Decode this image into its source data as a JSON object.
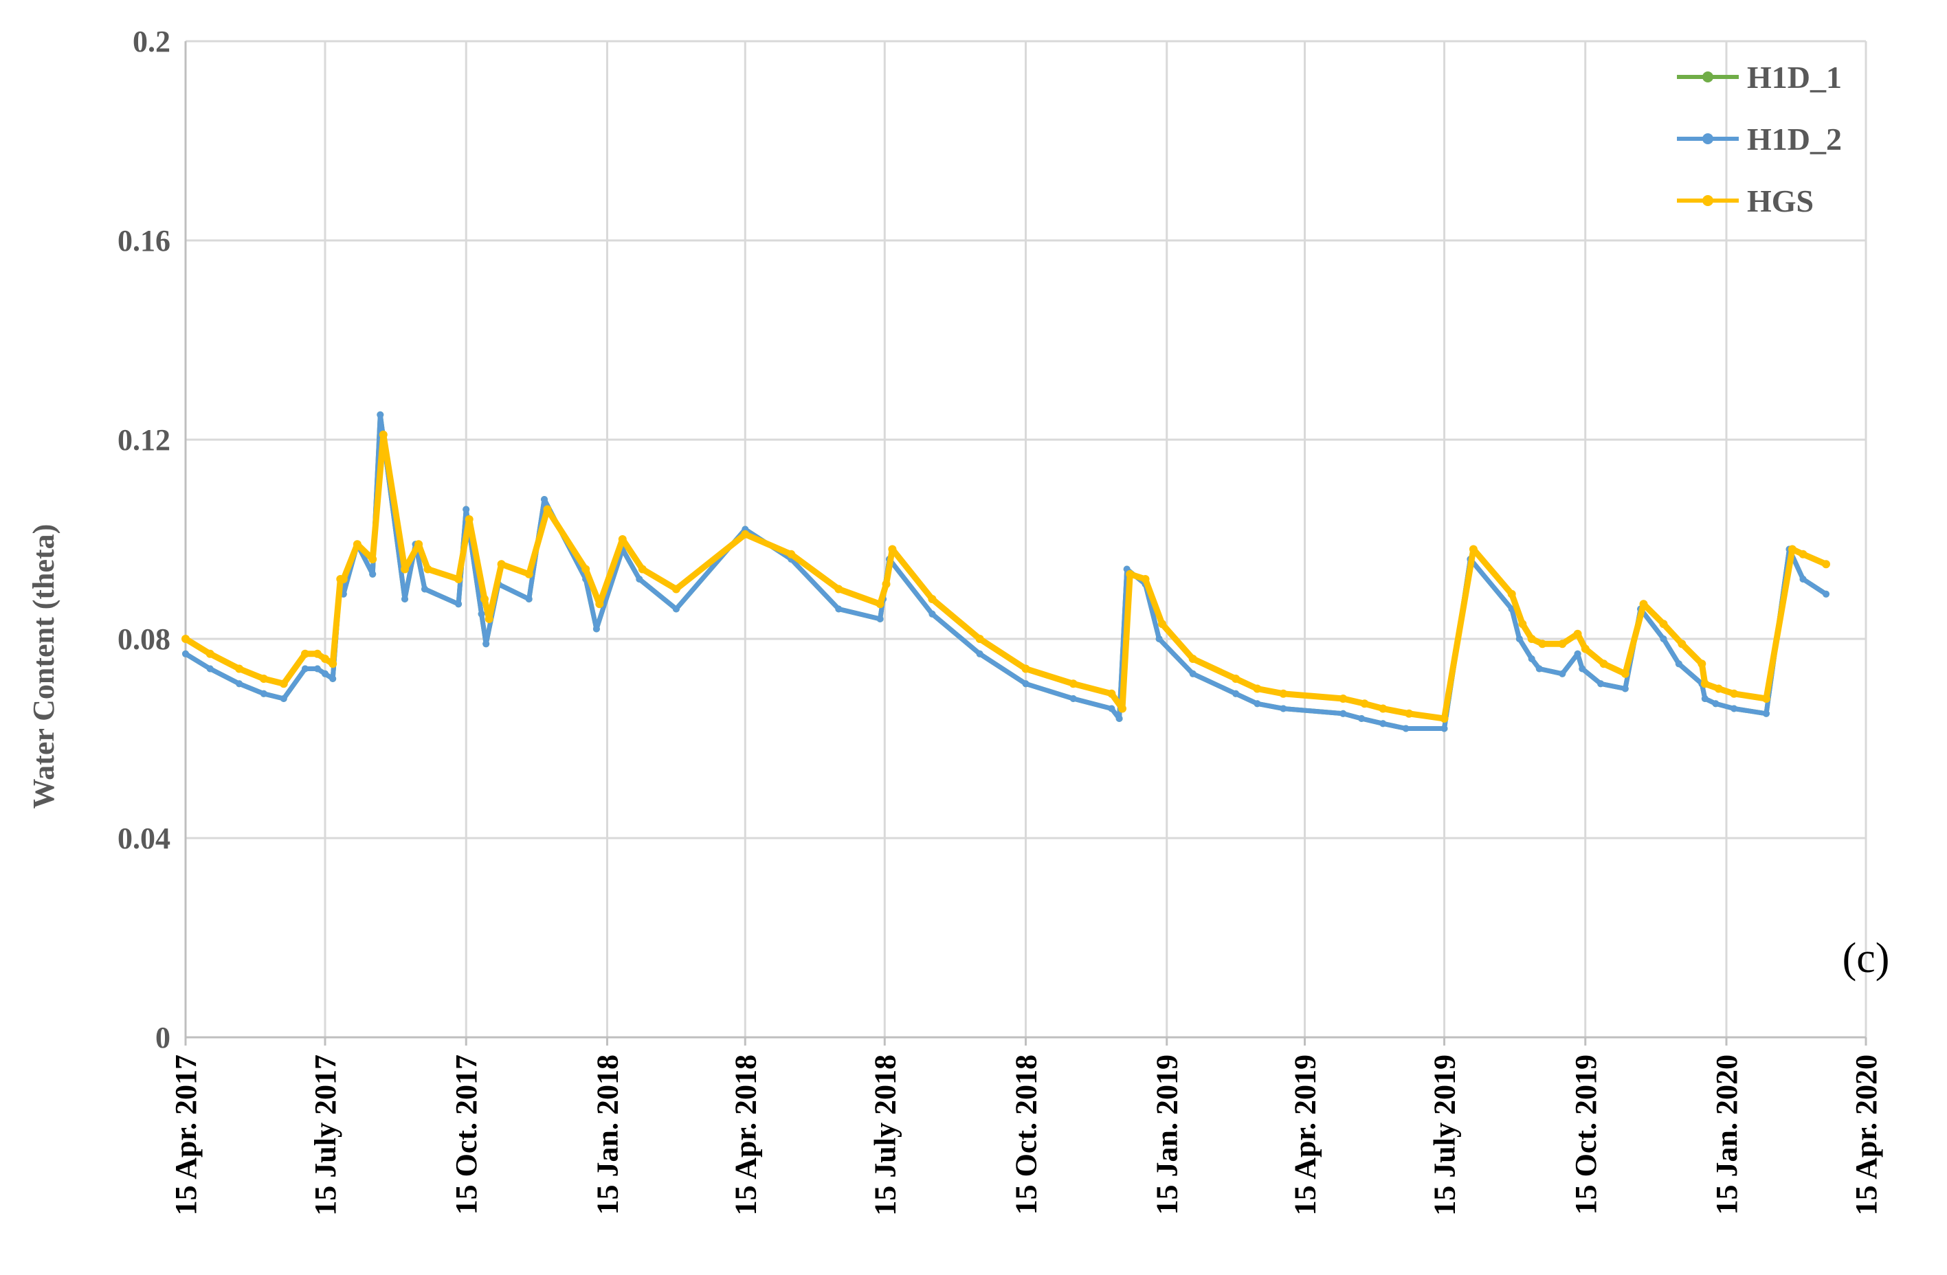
{
  "chart_data": {
    "type": "line",
    "title": "",
    "xlabel": "",
    "ylabel": "Water Content (theta)",
    "ylim": [
      0,
      0.2
    ],
    "yticks": [
      "0",
      "0.04",
      "0.08",
      "0.12",
      "0.16",
      "0.2"
    ],
    "ytick_values": [
      0,
      0.04,
      0.08,
      0.12,
      0.16,
      0.2
    ],
    "xlim": [
      "2017-04-15",
      "2020-04-15"
    ],
    "xticks": [
      "15 Apr. 2017",
      "15 July 2017",
      "15 Oct. 2017",
      "15 Jan. 2018",
      "15 Apr. 2018",
      "15 July 2018",
      "15 Oct. 2018",
      "15 Jan. 2019",
      "15 Apr. 2019",
      "15 July 2019",
      "15 Oct. 2019",
      "15 Jan. 2020",
      "15 Apr. 2020"
    ],
    "xtick_dates": [
      "2017-04-15",
      "2017-07-15",
      "2017-10-15",
      "2018-01-15",
      "2018-04-15",
      "2018-07-15",
      "2018-10-15",
      "2019-01-15",
      "2019-04-15",
      "2019-07-15",
      "2019-10-15",
      "2020-01-15",
      "2020-04-15"
    ],
    "grid": true,
    "legend_position": "top-right",
    "annotation": "(c)",
    "series": [
      {
        "name": "H1D_1",
        "color": "#70ad47",
        "x": [
          "2017-04-15",
          "2017-05-01",
          "2017-05-20",
          "2017-06-05",
          "2017-06-18",
          "2017-07-02",
          "2017-07-10",
          "2017-07-15",
          "2017-07-20",
          "2017-07-25",
          "2017-07-27",
          "2017-08-05",
          "2017-08-15",
          "2017-08-20",
          "2017-09-05",
          "2017-09-12",
          "2017-09-18",
          "2017-10-10",
          "2017-10-15",
          "2017-10-25",
          "2017-10-28",
          "2017-11-05",
          "2017-11-25",
          "2017-12-05",
          "2018-01-01",
          "2018-01-08",
          "2018-01-25",
          "2018-02-05",
          "2018-03-01",
          "2018-04-15",
          "2018-05-15",
          "2018-06-15",
          "2018-07-12",
          "2018-07-14",
          "2018-07-18",
          "2018-08-15",
          "2018-09-15",
          "2018-10-15",
          "2018-11-15",
          "2018-12-10",
          "2018-12-15",
          "2018-12-20",
          "2019-01-01",
          "2019-01-10",
          "2019-02-01",
          "2019-03-01",
          "2019-03-15",
          "2019-04-01",
          "2019-05-10",
          "2019-05-22",
          "2019-06-05",
          "2019-06-20",
          "2019-07-15",
          "2019-08-01",
          "2019-08-28",
          "2019-09-02",
          "2019-09-10",
          "2019-09-15",
          "2019-09-30",
          "2019-10-10",
          "2019-10-13",
          "2019-10-25",
          "2019-11-10",
          "2019-11-20",
          "2019-12-05",
          "2019-12-15",
          "2019-12-30",
          "2020-01-01",
          "2020-01-08",
          "2020-01-20",
          "2020-02-10",
          "2020-02-25",
          "2020-03-05",
          "2020-03-20"
        ],
        "y": [
          0.077,
          0.074,
          0.071,
          0.069,
          0.068,
          0.074,
          0.074,
          0.073,
          0.072,
          0.092,
          0.089,
          0.099,
          0.093,
          0.125,
          0.088,
          0.099,
          0.09,
          0.087,
          0.106,
          0.085,
          0.079,
          0.091,
          0.088,
          0.108,
          0.092,
          0.082,
          0.098,
          0.092,
          0.086,
          0.102,
          0.096,
          0.086,
          0.084,
          0.088,
          0.096,
          0.085,
          0.077,
          0.071,
          0.068,
          0.066,
          0.064,
          0.094,
          0.091,
          0.08,
          0.073,
          0.069,
          0.067,
          0.066,
          0.065,
          0.064,
          0.063,
          0.062,
          0.062,
          0.096,
          0.086,
          0.08,
          0.076,
          0.074,
          0.073,
          0.077,
          0.074,
          0.071,
          0.07,
          0.086,
          0.08,
          0.075,
          0.071,
          0.068,
          0.067,
          0.066,
          0.065,
          0.098,
          0.092,
          0.089
        ]
      },
      {
        "name": "H1D_2",
        "color": "#5b9bd5",
        "x": [
          "2017-04-15",
          "2017-05-01",
          "2017-05-20",
          "2017-06-05",
          "2017-06-18",
          "2017-07-02",
          "2017-07-10",
          "2017-07-15",
          "2017-07-20",
          "2017-07-25",
          "2017-07-27",
          "2017-08-05",
          "2017-08-15",
          "2017-08-20",
          "2017-09-05",
          "2017-09-12",
          "2017-09-18",
          "2017-10-10",
          "2017-10-15",
          "2017-10-25",
          "2017-10-28",
          "2017-11-05",
          "2017-11-25",
          "2017-12-05",
          "2018-01-01",
          "2018-01-08",
          "2018-01-25",
          "2018-02-05",
          "2018-03-01",
          "2018-04-15",
          "2018-05-15",
          "2018-06-15",
          "2018-07-12",
          "2018-07-14",
          "2018-07-18",
          "2018-08-15",
          "2018-09-15",
          "2018-10-15",
          "2018-11-15",
          "2018-12-10",
          "2018-12-15",
          "2018-12-20",
          "2019-01-01",
          "2019-01-10",
          "2019-02-01",
          "2019-03-01",
          "2019-03-15",
          "2019-04-01",
          "2019-05-10",
          "2019-05-22",
          "2019-06-05",
          "2019-06-20",
          "2019-07-15",
          "2019-08-01",
          "2019-08-28",
          "2019-09-02",
          "2019-09-10",
          "2019-09-15",
          "2019-09-30",
          "2019-10-10",
          "2019-10-13",
          "2019-10-25",
          "2019-11-10",
          "2019-11-20",
          "2019-12-05",
          "2019-12-15",
          "2019-12-30",
          "2020-01-01",
          "2020-01-08",
          "2020-01-20",
          "2020-02-10",
          "2020-02-25",
          "2020-03-05",
          "2020-03-20"
        ],
        "y": [
          0.077,
          0.074,
          0.071,
          0.069,
          0.068,
          0.074,
          0.074,
          0.073,
          0.072,
          0.092,
          0.089,
          0.099,
          0.093,
          0.125,
          0.088,
          0.099,
          0.09,
          0.087,
          0.106,
          0.085,
          0.079,
          0.091,
          0.088,
          0.108,
          0.092,
          0.082,
          0.098,
          0.092,
          0.086,
          0.102,
          0.096,
          0.086,
          0.084,
          0.088,
          0.096,
          0.085,
          0.077,
          0.071,
          0.068,
          0.066,
          0.064,
          0.094,
          0.091,
          0.08,
          0.073,
          0.069,
          0.067,
          0.066,
          0.065,
          0.064,
          0.063,
          0.062,
          0.062,
          0.096,
          0.086,
          0.08,
          0.076,
          0.074,
          0.073,
          0.077,
          0.074,
          0.071,
          0.07,
          0.086,
          0.08,
          0.075,
          0.071,
          0.068,
          0.067,
          0.066,
          0.065,
          0.098,
          0.092,
          0.089
        ]
      },
      {
        "name": "HGS",
        "color": "#ffc000",
        "x": [
          "2017-04-15",
          "2017-05-01",
          "2017-05-20",
          "2017-06-05",
          "2017-06-18",
          "2017-07-02",
          "2017-07-10",
          "2017-07-15",
          "2017-07-20",
          "2017-07-25",
          "2017-07-27",
          "2017-08-05",
          "2017-08-15",
          "2017-08-22",
          "2017-09-05",
          "2017-09-14",
          "2017-09-20",
          "2017-10-10",
          "2017-10-17",
          "2017-10-27",
          "2017-10-30",
          "2017-11-07",
          "2017-11-25",
          "2017-12-07",
          "2018-01-01",
          "2018-01-10",
          "2018-01-25",
          "2018-02-07",
          "2018-03-01",
          "2018-04-15",
          "2018-05-15",
          "2018-06-15",
          "2018-07-12",
          "2018-07-16",
          "2018-07-20",
          "2018-08-15",
          "2018-09-15",
          "2018-10-15",
          "2018-11-15",
          "2018-12-10",
          "2018-12-17",
          "2018-12-22",
          "2019-01-01",
          "2019-01-12",
          "2019-02-01",
          "2019-03-01",
          "2019-03-15",
          "2019-04-01",
          "2019-05-10",
          "2019-05-24",
          "2019-06-05",
          "2019-06-22",
          "2019-07-15",
          "2019-08-03",
          "2019-08-28",
          "2019-09-04",
          "2019-09-10",
          "2019-09-17",
          "2019-09-30",
          "2019-10-10",
          "2019-10-15",
          "2019-10-27",
          "2019-11-10",
          "2019-11-22",
          "2019-12-05",
          "2019-12-17",
          "2019-12-30",
          "2020-01-01",
          "2020-01-10",
          "2020-01-20",
          "2020-02-10",
          "2020-02-27",
          "2020-03-05",
          "2020-03-20"
        ],
        "y": [
          0.08,
          0.077,
          0.074,
          0.072,
          0.071,
          0.077,
          0.077,
          0.076,
          0.075,
          0.092,
          0.092,
          0.099,
          0.096,
          0.121,
          0.094,
          0.099,
          0.094,
          0.092,
          0.104,
          0.088,
          0.084,
          0.095,
          0.093,
          0.106,
          0.094,
          0.087,
          0.1,
          0.094,
          0.09,
          0.101,
          0.097,
          0.09,
          0.087,
          0.091,
          0.098,
          0.088,
          0.08,
          0.074,
          0.071,
          0.069,
          0.066,
          0.093,
          0.092,
          0.083,
          0.076,
          0.072,
          0.07,
          0.069,
          0.068,
          0.067,
          0.066,
          0.065,
          0.064,
          0.098,
          0.089,
          0.083,
          0.08,
          0.079,
          0.079,
          0.081,
          0.078,
          0.075,
          0.073,
          0.087,
          0.083,
          0.079,
          0.075,
          0.071,
          0.07,
          0.069,
          0.068,
          0.098,
          0.097,
          0.095
        ]
      }
    ]
  }
}
